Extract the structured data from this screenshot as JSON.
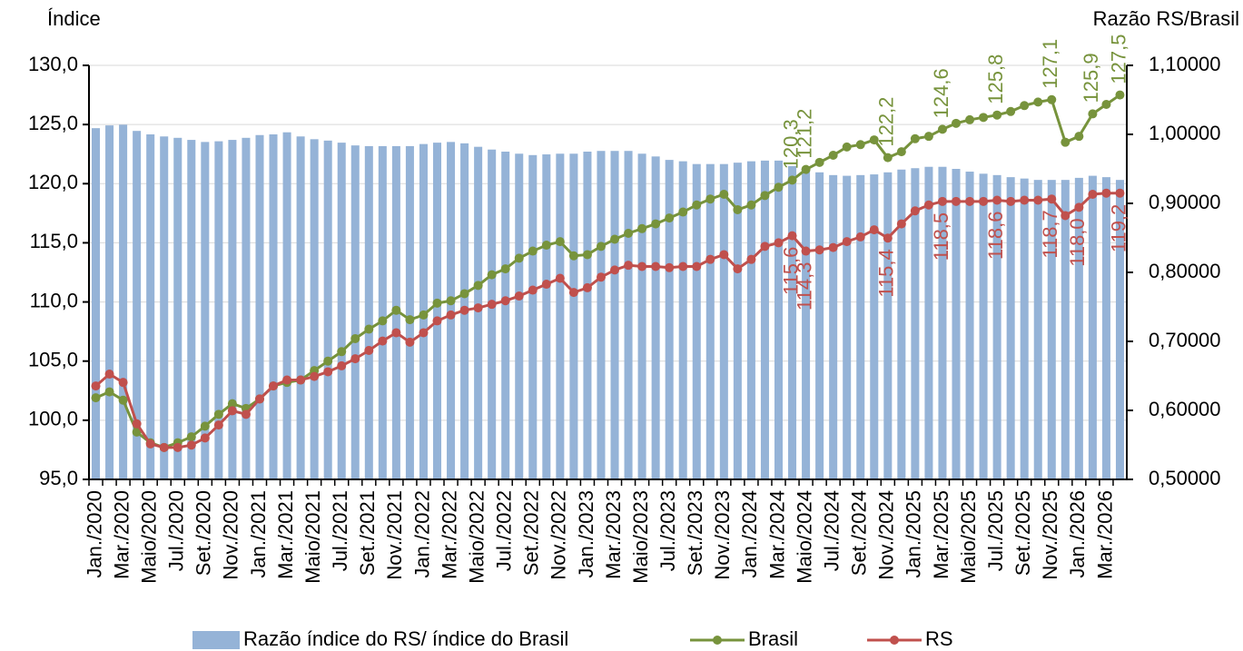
{
  "chart_data": {
    "type": "bar_line",
    "ylabel": "Índice",
    "y2label": "Razão RS/Brasil",
    "categories": [
      "Jan./2020",
      null,
      "Mar./2020",
      null,
      "Maio/2020",
      null,
      "Jul./2020",
      null,
      "Set./2020",
      null,
      "Nov./2020",
      null,
      "Jan./2021",
      null,
      "Mar./2021",
      null,
      "Maio/2021",
      null,
      "Jul./2021",
      null,
      "Set./2021",
      null,
      "Nov./2021",
      null,
      "Jan./2022",
      null,
      "Mar./2022",
      null,
      "Maio/2022",
      null,
      "Jul./2022",
      null,
      "Set./2022",
      null,
      "Nov./2022",
      null,
      "Jan./2023",
      null,
      "Mar./2023",
      null,
      "Maio/2023",
      null,
      "Jul./2023",
      null,
      "Set./2023",
      null,
      "Nov./2023",
      null,
      "Jan./2024",
      null,
      "Mar./2024",
      null,
      "Maio/2024",
      null,
      "Jul./2024",
      null,
      "Set./2024",
      null,
      "Nov./2024",
      null,
      "Jan./2025",
      null,
      "Mar./2025",
      null,
      "Maio/2025",
      null,
      "Jul./2025",
      null,
      "Set./2025",
      null,
      "Nov./2025",
      null,
      "Jan./2026",
      null,
      "Mar./2026",
      null
    ],
    "series": [
      {
        "name": "Razão índice do RS/ índice do Brasil",
        "kind": "bar",
        "axis": "y2",
        "color": "#95b3d7",
        "values": [
          1.009,
          1.013,
          1.014,
          1.005,
          1.0,
          0.997,
          0.995,
          0.992,
          0.989,
          0.99,
          0.992,
          0.995,
          0.999,
          1.0,
          1.003,
          0.997,
          0.993,
          0.991,
          0.988,
          0.984,
          0.983,
          0.983,
          0.983,
          0.983,
          0.986,
          0.988,
          0.989,
          0.987,
          0.982,
          0.978,
          0.975,
          0.972,
          0.97,
          0.971,
          0.972,
          0.972,
          0.975,
          0.976,
          0.976,
          0.976,
          0.972,
          0.968,
          0.963,
          0.961,
          0.957,
          0.957,
          0.957,
          0.959,
          0.961,
          0.962,
          0.962,
          0.954,
          0.949,
          0.945,
          0.941,
          0.94,
          0.941,
          0.942,
          0.945,
          0.949,
          0.951,
          0.953,
          0.953,
          0.95,
          0.946,
          0.943,
          0.941,
          0.938,
          0.936,
          0.934,
          0.934,
          0.934,
          0.937,
          0.94,
          0.938,
          0.934
        ]
      },
      {
        "name": "Brasil",
        "kind": "line",
        "color": "#77933c",
        "label_side": "above",
        "values": [
          101.9,
          102.4,
          101.7,
          99.0,
          98.1,
          97.7,
          98.1,
          98.6,
          99.5,
          100.5,
          101.4,
          101.0,
          101.8,
          102.9,
          103.2,
          103.4,
          104.2,
          105.0,
          105.8,
          106.9,
          107.7,
          108.4,
          109.3,
          108.5,
          108.9,
          109.9,
          110.1,
          110.7,
          111.4,
          112.3,
          112.8,
          113.7,
          114.3,
          114.8,
          115.1,
          113.9,
          114.0,
          114.7,
          115.3,
          115.8,
          116.2,
          116.6,
          117.1,
          117.6,
          118.2,
          118.7,
          119.1,
          117.8,
          118.2,
          119.0,
          119.7,
          120.3,
          121.2,
          121.8,
          122.4,
          123.1,
          123.3,
          123.7,
          122.2,
          122.7,
          123.8,
          124.0,
          124.6,
          125.1,
          125.4,
          125.6,
          125.8,
          126.1,
          126.6,
          126.9,
          127.1,
          123.5,
          124.0,
          125.9,
          126.7,
          127.5
        ],
        "value_labels": [
          null,
          null,
          null,
          null,
          null,
          null,
          null,
          null,
          null,
          null,
          null,
          null,
          null,
          null,
          null,
          null,
          null,
          null,
          null,
          null,
          null,
          null,
          null,
          null,
          null,
          null,
          null,
          null,
          null,
          null,
          null,
          null,
          null,
          null,
          null,
          null,
          null,
          null,
          null,
          null,
          null,
          null,
          null,
          null,
          null,
          null,
          null,
          null,
          null,
          null,
          null,
          "120,3",
          "121,2",
          null,
          null,
          null,
          null,
          null,
          "122,2",
          null,
          null,
          null,
          "124,6",
          null,
          null,
          null,
          "125,8",
          null,
          null,
          null,
          "127,1",
          null,
          null,
          "125,9",
          null,
          "127,5"
        ]
      },
      {
        "name": "RS",
        "kind": "line",
        "color": "#c0504d",
        "label_side": "below",
        "values": [
          102.9,
          103.9,
          103.2,
          99.7,
          98.0,
          97.7,
          97.7,
          97.9,
          98.5,
          99.6,
          100.8,
          100.5,
          101.8,
          102.9,
          103.4,
          103.4,
          103.7,
          104.1,
          104.6,
          105.2,
          105.9,
          106.7,
          107.4,
          106.6,
          107.4,
          108.4,
          108.9,
          109.3,
          109.5,
          109.8,
          110.1,
          110.5,
          111.0,
          111.5,
          112.0,
          110.8,
          111.2,
          112.1,
          112.7,
          113.1,
          113.0,
          113.0,
          112.9,
          113.0,
          113.0,
          113.6,
          114.0,
          112.8,
          113.6,
          114.7,
          115.0,
          115.6,
          114.3,
          114.4,
          114.6,
          115.1,
          115.5,
          116.1,
          115.4,
          116.6,
          117.7,
          118.2,
          118.5,
          118.5,
          118.5,
          118.5,
          118.6,
          118.5,
          118.6,
          118.6,
          118.7,
          117.3,
          118.0,
          119.1,
          119.2,
          119.2
        ],
        "value_labels": [
          null,
          null,
          null,
          null,
          null,
          null,
          null,
          null,
          null,
          null,
          null,
          null,
          null,
          null,
          null,
          null,
          null,
          null,
          null,
          null,
          null,
          null,
          null,
          null,
          null,
          null,
          null,
          null,
          null,
          null,
          null,
          null,
          null,
          null,
          null,
          null,
          null,
          null,
          null,
          null,
          null,
          null,
          null,
          null,
          null,
          null,
          null,
          null,
          null,
          null,
          null,
          "115,6",
          "114,3",
          null,
          null,
          null,
          null,
          null,
          "115,4",
          null,
          null,
          null,
          "118,5",
          null,
          null,
          null,
          "118,6",
          null,
          null,
          null,
          "118,7",
          null,
          "118,0",
          null,
          null,
          "119,2"
        ]
      }
    ],
    "ylim": [
      95,
      130
    ],
    "yticks": [
      {
        "value": 95,
        "label": "95,0"
      },
      {
        "value": 100,
        "label": "100,0"
      },
      {
        "value": 105,
        "label": "105,0"
      },
      {
        "value": 110,
        "label": "110,0"
      },
      {
        "value": 115,
        "label": "115,0"
      },
      {
        "value": 120,
        "label": "120,0"
      },
      {
        "value": 125,
        "label": "125,0"
      },
      {
        "value": 130,
        "label": "130,0"
      }
    ],
    "y2lim": [
      0.5,
      1.1
    ],
    "y2ticks": [
      {
        "value": 0.5,
        "label": "0,50000"
      },
      {
        "value": 0.6,
        "label": "0,60000"
      },
      {
        "value": 0.7,
        "label": "0,70000"
      },
      {
        "value": 0.8,
        "label": "0,80000"
      },
      {
        "value": 0.9,
        "label": "0,90000"
      },
      {
        "value": 1.0,
        "label": "1,00000"
      },
      {
        "value": 1.1,
        "label": "1,10000"
      }
    ],
    "grid": true,
    "legend": "bottom"
  }
}
